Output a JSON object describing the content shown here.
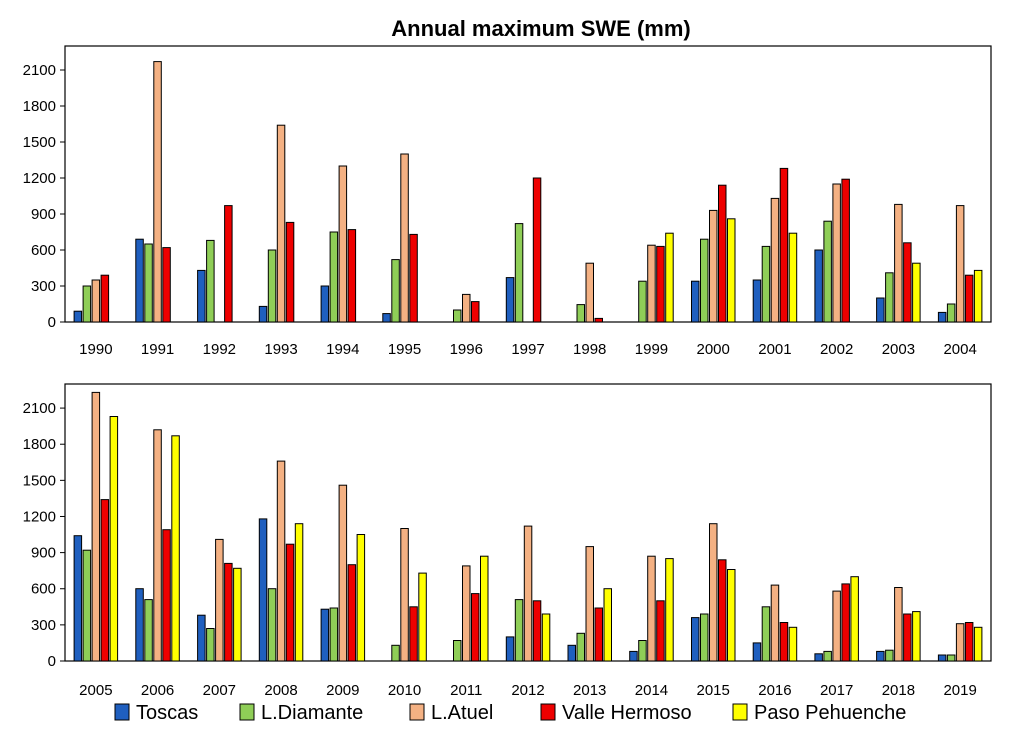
{
  "chart_data": {
    "type": "bar",
    "title": "Annual maximum SWE (mm)",
    "ylim": [
      0,
      2300
    ],
    "yticks": [
      0,
      300,
      600,
      900,
      1200,
      1500,
      1800,
      2100
    ],
    "legend_position": "bottom",
    "series": [
      {
        "name": "Toscas",
        "color": "#1f5fbf"
      },
      {
        "name": "L.Diamante",
        "color": "#8fce57"
      },
      {
        "name": "L.Atuel",
        "color": "#f4b183"
      },
      {
        "name": "Valle Hermoso",
        "color": "#ee0000"
      },
      {
        "name": "Paso Pehuenche",
        "color": "#ffff00"
      }
    ],
    "panels": [
      {
        "categories": [
          "1990",
          "1991",
          "1992",
          "1993",
          "1994",
          "1995",
          "1996",
          "1997",
          "1998",
          "1999",
          "2000",
          "2001",
          "2002",
          "2003",
          "2004"
        ],
        "values": {
          "Toscas": [
            90,
            690,
            430,
            130,
            300,
            70,
            null,
            370,
            null,
            null,
            340,
            350,
            600,
            200,
            80
          ],
          "L.Diamante": [
            300,
            650,
            680,
            600,
            750,
            520,
            100,
            820,
            145,
            340,
            690,
            630,
            840,
            410,
            150
          ],
          "L.Atuel": [
            350,
            2170,
            null,
            1640,
            1300,
            1400,
            230,
            null,
            490,
            640,
            930,
            1030,
            1150,
            980,
            970
          ],
          "Valle Hermoso": [
            390,
            620,
            970,
            830,
            770,
            730,
            170,
            1200,
            30,
            630,
            1140,
            1280,
            1190,
            660,
            390
          ],
          "Paso Pehuenche": [
            null,
            null,
            null,
            null,
            null,
            null,
            null,
            null,
            null,
            740,
            860,
            740,
            null,
            490,
            430
          ]
        }
      },
      {
        "categories": [
          "2005",
          "2006",
          "2007",
          "2008",
          "2009",
          "2010",
          "2011",
          "2012",
          "2013",
          "2014",
          "2015",
          "2016",
          "2017",
          "2018",
          "2019"
        ],
        "values": {
          "Toscas": [
            1040,
            600,
            380,
            1180,
            430,
            null,
            null,
            200,
            130,
            80,
            360,
            150,
            60,
            80,
            50
          ],
          "L.Diamante": [
            920,
            510,
            270,
            600,
            440,
            130,
            170,
            510,
            230,
            170,
            390,
            450,
            80,
            90,
            50
          ],
          "L.Atuel": [
            2230,
            1920,
            1010,
            1660,
            1460,
            1100,
            790,
            1120,
            950,
            870,
            1140,
            630,
            580,
            610,
            310
          ],
          "Valle Hermoso": [
            1340,
            1090,
            810,
            970,
            800,
            450,
            560,
            500,
            440,
            500,
            840,
            320,
            640,
            390,
            320
          ],
          "Paso Pehuenche": [
            2030,
            1870,
            770,
            1140,
            1050,
            730,
            870,
            390,
            600,
            850,
            760,
            280,
            700,
            410,
            280
          ]
        }
      }
    ]
  }
}
